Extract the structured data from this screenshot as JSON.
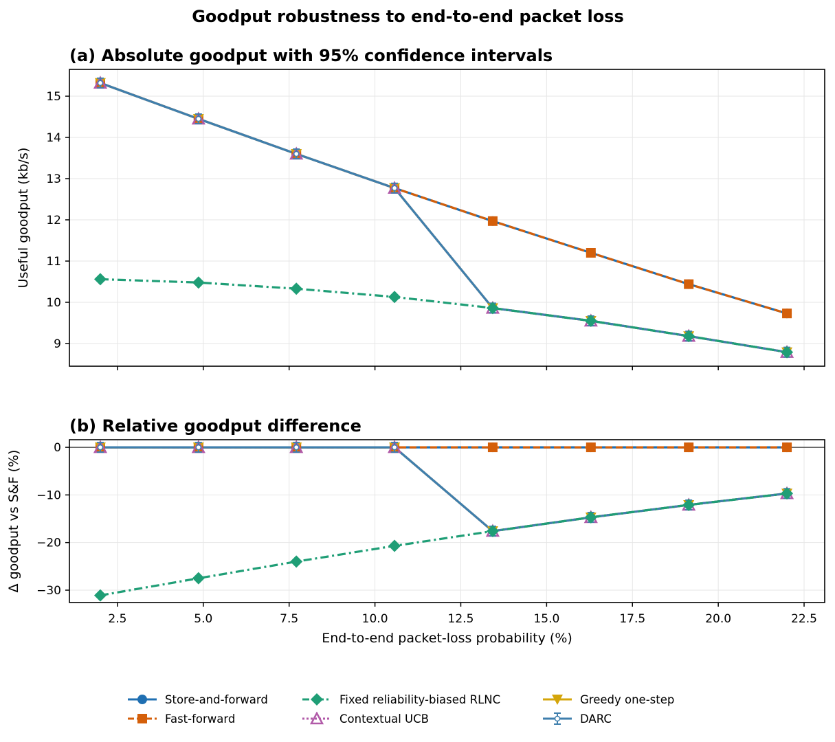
{
  "figure": {
    "suptitle": "Goodput robustness to end-to-end packet loss"
  },
  "colors": {
    "store_and_forward": "#1f6fb2",
    "fast_forward": "#d45f0a",
    "fixed_rlnc": "#1f9e76",
    "contextual_ucb": "#b15aa8",
    "greedy": "#d4a50a",
    "darc": "#3f7fad"
  },
  "chart_data": [
    {
      "type": "line",
      "title": "(a) Absolute goodput with 95% confidence intervals",
      "xlabel": "",
      "ylabel": "Useful goodput (kb/s)",
      "xlim": [
        1.1,
        23.1
      ],
      "ylim": [
        8.45,
        15.65
      ],
      "x": [
        2.0,
        4.86,
        7.71,
        10.57,
        13.43,
        16.29,
        19.14,
        22.0
      ],
      "xticks": [
        2.5,
        5.0,
        7.5,
        10.0,
        12.5,
        15.0,
        17.5,
        20.0,
        22.5
      ],
      "yticks": [
        9,
        10,
        11,
        12,
        13,
        14,
        15
      ],
      "show_xticklabels": false,
      "grid": true,
      "series": [
        {
          "name": "Store-and-forward",
          "values": [
            15.32,
            14.45,
            13.6,
            12.77,
            11.97,
            11.2,
            10.44,
            9.73
          ]
        },
        {
          "name": "Fast-forward",
          "values": [
            15.32,
            14.45,
            13.6,
            12.77,
            11.97,
            11.2,
            10.44,
            9.73
          ]
        },
        {
          "name": "Fixed reliability-biased RLNC",
          "values": [
            10.56,
            10.48,
            10.33,
            10.13,
            9.86,
            9.55,
            9.18,
            8.79
          ]
        },
        {
          "name": "Contextual UCB",
          "values": [
            15.32,
            14.45,
            13.6,
            12.77,
            9.86,
            9.55,
            9.18,
            8.79
          ]
        },
        {
          "name": "Greedy one-step",
          "values": [
            15.32,
            14.45,
            13.6,
            12.77,
            9.86,
            9.55,
            9.18,
            8.79
          ]
        },
        {
          "name": "DARC",
          "values": [
            15.32,
            14.45,
            13.6,
            12.77,
            9.86,
            9.55,
            9.18,
            8.79
          ]
        }
      ]
    },
    {
      "type": "line",
      "title": "(b) Relative goodput difference",
      "xlabel": "End-to-end packet-loss probability (%)",
      "ylabel": "Δ goodput vs S&F (%)",
      "xlim": [
        1.1,
        23.1
      ],
      "ylim": [
        -32.6,
        1.6
      ],
      "x": [
        2.0,
        4.86,
        7.71,
        10.57,
        13.43,
        16.29,
        19.14,
        22.0
      ],
      "xticks": [
        2.5,
        5.0,
        7.5,
        10.0,
        12.5,
        15.0,
        17.5,
        20.0,
        22.5
      ],
      "xticklabels": [
        "2.5",
        "5.0",
        "7.5",
        "10.0",
        "12.5",
        "15.0",
        "17.5",
        "20.0",
        "22.5"
      ],
      "yticks": [
        0,
        -10,
        -20,
        -30
      ],
      "yticklabels": [
        "0",
        "−10",
        "−20",
        "−30"
      ],
      "grid": true,
      "zero_line": true,
      "series": [
        {
          "name": "Store-and-forward",
          "values": [
            0,
            0,
            0,
            0,
            0,
            0,
            0,
            0
          ]
        },
        {
          "name": "Fast-forward",
          "values": [
            0,
            0,
            0,
            0,
            0,
            0,
            0,
            0
          ]
        },
        {
          "name": "Fixed reliability-biased RLNC",
          "values": [
            -31.1,
            -27.5,
            -24.0,
            -20.7,
            -17.6,
            -14.7,
            -12.1,
            -9.7
          ]
        },
        {
          "name": "Contextual UCB",
          "values": [
            0,
            0,
            0,
            0,
            -17.6,
            -14.7,
            -12.1,
            -9.7
          ]
        },
        {
          "name": "Greedy one-step",
          "values": [
            0,
            0,
            0,
            0,
            -17.6,
            -14.7,
            -12.1,
            -9.7
          ]
        },
        {
          "name": "DARC",
          "values": [
            0,
            0,
            0,
            0,
            -17.6,
            -14.7,
            -12.1,
            -9.7
          ]
        }
      ]
    }
  ],
  "legend": {
    "placement": "bottom",
    "items": [
      {
        "label": "Store-and-forward",
        "marker": "circle",
        "dash": "solid",
        "color": "#1f6fb2"
      },
      {
        "label": "Fast-forward",
        "marker": "square",
        "dash": "dashed",
        "color": "#d45f0a"
      },
      {
        "label": "Fixed reliability-biased RLNC",
        "marker": "diamond",
        "dash": "dashdot",
        "color": "#1f9e76"
      },
      {
        "label": "Contextual UCB",
        "marker": "triangle-up",
        "dash": "dotted",
        "color": "#b15aa8"
      },
      {
        "label": "Greedy one-step",
        "marker": "triangle-down",
        "dash": "solid",
        "color": "#d4a50a"
      },
      {
        "label": "DARC",
        "marker": "point",
        "dash": "solid",
        "color": "#3f7fad"
      }
    ]
  }
}
